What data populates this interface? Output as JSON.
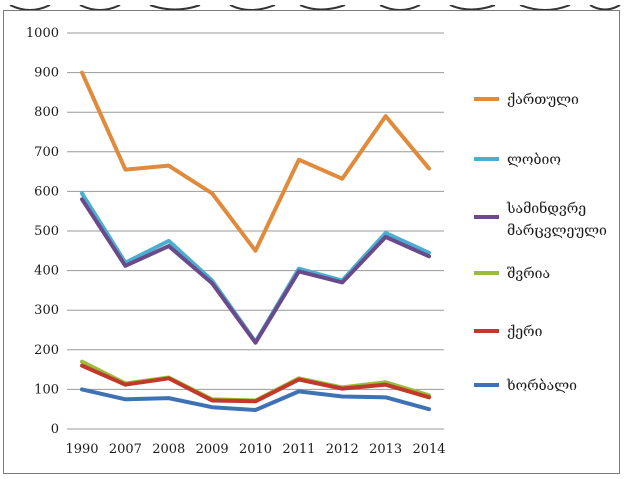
{
  "chart_data": {
    "type": "line",
    "x": [
      "1990",
      "2007",
      "2008",
      "2009",
      "2010",
      "2011",
      "2012",
      "2013",
      "2014"
    ],
    "ylim": [
      0,
      1000
    ],
    "yticks": [
      "0",
      "100",
      "200",
      "300",
      "400",
      "500",
      "600",
      "700",
      "800",
      "900",
      "1000"
    ],
    "grid": true,
    "legend_position": "right",
    "series": [
      {
        "name": "ქართული",
        "color": "#e08a3c",
        "values": [
          900,
          655,
          665,
          595,
          450,
          680,
          632,
          790,
          658
        ]
      },
      {
        "name": "ლობიო",
        "color": "#4aaed0",
        "values": [
          595,
          420,
          475,
          375,
          220,
          405,
          375,
          495,
          445
        ]
      },
      {
        "name": "სამინდვრე მარცვლეული",
        "color": "#6b4a8c",
        "values": [
          580,
          412,
          462,
          368,
          218,
          398,
          370,
          485,
          436
        ]
      },
      {
        "name": "შვრია",
        "color": "#9bbb3b",
        "values": [
          170,
          115,
          130,
          75,
          72,
          128,
          105,
          118,
          85
        ]
      },
      {
        "name": "ქერი",
        "color": "#c0392b",
        "values": [
          160,
          112,
          128,
          72,
          70,
          125,
          102,
          112,
          80
        ]
      },
      {
        "name": "ხორბალი",
        "color": "#3f72b5",
        "values": [
          100,
          75,
          78,
          55,
          48,
          95,
          82,
          80,
          50
        ]
      }
    ]
  }
}
